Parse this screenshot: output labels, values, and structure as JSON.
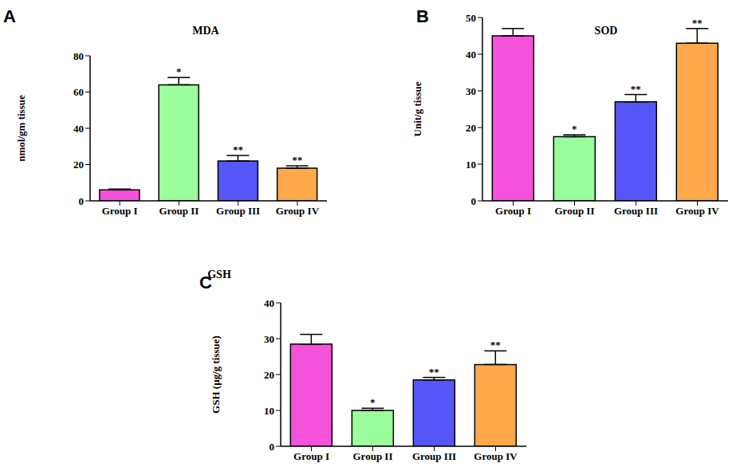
{
  "chart_data": [
    {
      "type": "bar",
      "panel": "A",
      "title": "MDA",
      "y_label": "nmol/gm tissue",
      "categories": [
        "Group I",
        "Group II",
        "Group III",
        "Group IV"
      ],
      "values": [
        6,
        64,
        22,
        18
      ],
      "errors": [
        0.5,
        4,
        3,
        1.3
      ],
      "significance": [
        null,
        "*",
        "**",
        "**"
      ],
      "colors": [
        "#f552dc",
        "#9bfd9b",
        "#5656f8",
        "#ffa84c"
      ],
      "ylim": [
        0,
        80
      ],
      "yticks": [
        0,
        20,
        40,
        60,
        80
      ]
    },
    {
      "type": "bar",
      "panel": "B",
      "title": "SOD",
      "y_label": "Unit/g tissue",
      "categories": [
        "Group I",
        "Group II",
        "Group III",
        "Group IV"
      ],
      "values": [
        45,
        17.5,
        27,
        43
      ],
      "errors": [
        2,
        0.5,
        2,
        4
      ],
      "significance": [
        null,
        "*",
        "**",
        "**"
      ],
      "colors": [
        "#f552dc",
        "#9bfd9b",
        "#5656f8",
        "#ffa84c"
      ],
      "ylim": [
        0,
        50
      ],
      "yticks": [
        0,
        10,
        20,
        30,
        40,
        50
      ]
    },
    {
      "type": "bar",
      "panel": "C",
      "title": "GSH",
      "y_label": "GSH (µg/g tissue)",
      "categories": [
        "Group I",
        "Group II",
        "Group III",
        "Group IV"
      ],
      "values": [
        28.5,
        10,
        18.5,
        22.8
      ],
      "errors": [
        2.7,
        0.6,
        0.7,
        3.8
      ],
      "significance": [
        null,
        "*",
        "**",
        "**"
      ],
      "colors": [
        "#f552dc",
        "#9bfd9b",
        "#5656f8",
        "#ffa84c"
      ],
      "ylim": [
        0,
        40
      ],
      "yticks": [
        0,
        10,
        20,
        30,
        40
      ]
    }
  ]
}
